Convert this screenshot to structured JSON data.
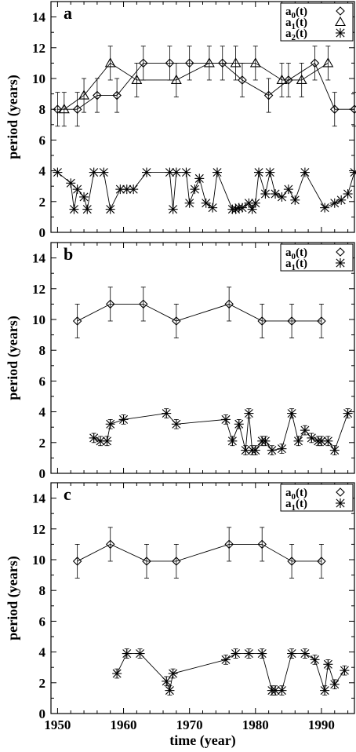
{
  "chart_data": [
    {
      "type": "line",
      "panel_label": "a",
      "ylabel": "period (years)",
      "xlim": [
        1949,
        1995
      ],
      "ylim": [
        0,
        15
      ],
      "yticks": [
        0,
        2,
        4,
        6,
        8,
        10,
        12,
        14
      ],
      "legend": {
        "position": "top-right",
        "entries": [
          "a0(t)",
          "a1(t)",
          "a2(t)"
        ]
      },
      "series": [
        {
          "name": "a0(t)",
          "marker": "diamond",
          "error": 1.1,
          "x": [
            1950,
            1953,
            1956,
            1959,
            1963,
            1967,
            1970,
            1975,
            1978,
            1982,
            1985,
            1989,
            1992,
            1995
          ],
          "y": [
            8,
            8,
            8.9,
            8.9,
            11,
            11,
            11,
            11,
            9.9,
            8.9,
            9.9,
            11,
            8,
            8
          ]
        },
        {
          "name": "a1(t)",
          "marker": "triangle",
          "error": 1.1,
          "x": [
            1951,
            1954,
            1958,
            1962,
            1968,
            1973,
            1977,
            1980,
            1984,
            1987,
            1991
          ],
          "y": [
            8,
            8.9,
            11,
            9.9,
            9.9,
            11,
            11,
            11,
            9.9,
            9.9,
            11
          ]
        },
        {
          "name": "a2(t)",
          "marker": "asterisk",
          "x": [
            1950,
            1952,
            1952.5,
            1953,
            1954,
            1954.5,
            1955.5,
            1957,
            1958,
            1959.5,
            1960.5,
            1961.5,
            1963.5,
            1967,
            1967.5,
            1968,
            1969.5,
            1970,
            1970.8,
            1971.5,
            1972.5,
            1973.5,
            1974.2,
            1976.5,
            1977,
            1977.5,
            1978,
            1979,
            1979.5,
            1980,
            1980.5,
            1981.5,
            1982.2,
            1983,
            1984,
            1985,
            1986,
            1987.5,
            1990.5,
            1992,
            1993,
            1994,
            1995
          ],
          "y": [
            3.9,
            3.2,
            1.5,
            2.8,
            2.3,
            1.5,
            3.9,
            3.9,
            1.5,
            2.8,
            2.8,
            2.8,
            3.9,
            3.9,
            1.5,
            3.9,
            3.9,
            1.9,
            2.8,
            3.5,
            1.9,
            1.6,
            3.9,
            1.5,
            1.5,
            1.6,
            1.6,
            1.9,
            1.5,
            1.9,
            3.9,
            2.5,
            3.9,
            2.5,
            2.3,
            2.8,
            2.1,
            3.9,
            1.6,
            1.9,
            2.1,
            2.5,
            3.9
          ]
        }
      ]
    },
    {
      "type": "line",
      "panel_label": "b",
      "ylabel": "period (years)",
      "xlim": [
        1949,
        1995
      ],
      "ylim": [
        0,
        15
      ],
      "yticks": [
        0,
        2,
        4,
        6,
        8,
        10,
        12,
        14
      ],
      "legend": {
        "position": "top-right",
        "entries": [
          "a0(t)",
          "a1(t)"
        ]
      },
      "series": [
        {
          "name": "a0(t)",
          "marker": "diamond",
          "error": 1.1,
          "x": [
            1953,
            1958,
            1963,
            1968,
            1976,
            1981,
            1985.5,
            1990
          ],
          "y": [
            9.9,
            11,
            11,
            9.9,
            11,
            9.9,
            9.9,
            9.9
          ]
        },
        {
          "name": "a1(t)",
          "marker": "asterisk",
          "error": 0.3,
          "x": [
            1955.5,
            1956.5,
            1957.5,
            1958,
            1960,
            1966.5,
            1968,
            1975.5,
            1976.5,
            1977.5,
            1978.5,
            1979,
            1979.5,
            1980,
            1981,
            1981.5,
            1982.5,
            1984,
            1985.5,
            1986.5,
            1987.5,
            1988.5,
            1989.5,
            1990,
            1991,
            1992,
            1994
          ],
          "y": [
            2.3,
            2.1,
            2.1,
            3.2,
            3.5,
            3.9,
            3.2,
            3.5,
            2.1,
            3.2,
            1.5,
            3.9,
            1.5,
            1.5,
            2.1,
            2.1,
            1.5,
            1.6,
            3.9,
            2.1,
            2.8,
            2.3,
            2.1,
            2.1,
            2.1,
            1.5,
            3.9
          ]
        }
      ]
    },
    {
      "type": "line",
      "panel_label": "c",
      "ylabel": "period (years)",
      "xlabel": "time (year)",
      "xlim": [
        1949,
        1995
      ],
      "ylim": [
        0,
        15
      ],
      "xticks": [
        1950,
        1960,
        1970,
        1980,
        1990
      ],
      "yticks": [
        0,
        2,
        4,
        6,
        8,
        10,
        12,
        14
      ],
      "legend": {
        "position": "top-right",
        "entries": [
          "a0(t)",
          "a1(t)"
        ]
      },
      "series": [
        {
          "name": "a0(t)",
          "marker": "diamond",
          "error": 1.1,
          "x": [
            1953,
            1958,
            1963.5,
            1968,
            1976,
            1981,
            1985.5,
            1990
          ],
          "y": [
            9.9,
            11,
            9.9,
            9.9,
            11,
            11,
            9.9,
            9.9
          ]
        },
        {
          "name": "a1(t)",
          "marker": "asterisk",
          "error": 0.3,
          "x": [
            1959,
            1960.5,
            1962.5,
            1966.5,
            1967,
            1967.5,
            1975.5,
            1977,
            1979,
            1981,
            1982.5,
            1983,
            1984,
            1985.5,
            1987.5,
            1989,
            1990.5,
            1991,
            1992,
            1993.5
          ],
          "y": [
            2.6,
            3.9,
            3.9,
            2.1,
            1.5,
            2.6,
            3.5,
            3.9,
            3.9,
            3.9,
            1.5,
            1.5,
            1.5,
            3.9,
            3.9,
            3.5,
            1.5,
            3.2,
            1.9,
            2.8
          ]
        }
      ]
    }
  ]
}
